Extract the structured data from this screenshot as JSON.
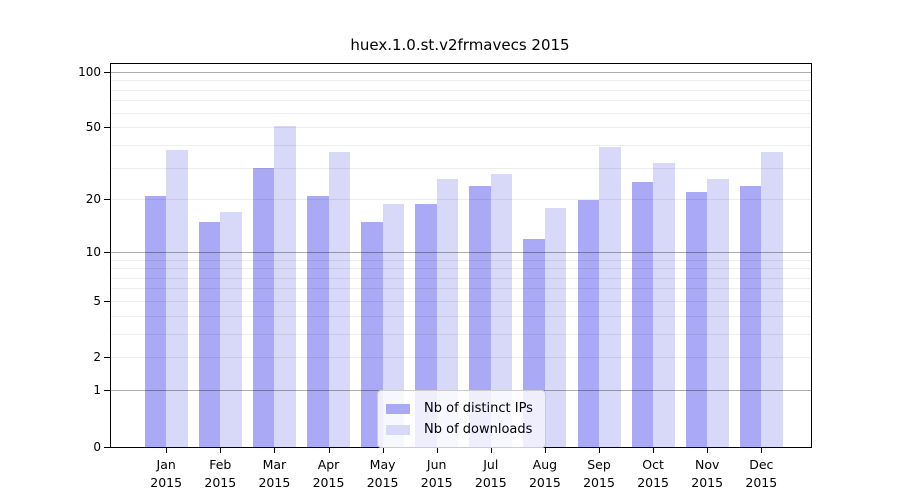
{
  "title": "huex.1.0.st.v2frmavecs 2015",
  "chart_data": {
    "type": "bar",
    "title": "huex.1.0.st.v2frmavecs 2015",
    "categories": [
      "Jan",
      "Feb",
      "Mar",
      "Apr",
      "May",
      "Jun",
      "Jul",
      "Aug",
      "Sep",
      "Oct",
      "Nov",
      "Dec"
    ],
    "year": "2015",
    "series": [
      {
        "name": "Nb of distinct IPs",
        "color": "#a9a9f5",
        "values": [
          21,
          15,
          30,
          21,
          15,
          19,
          24,
          12,
          20,
          25,
          22,
          24
        ]
      },
      {
        "name": "Nb of downloads",
        "color": "#d8d8f8",
        "values": [
          38,
          17,
          51,
          37,
          19,
          26,
          28,
          18,
          39,
          32,
          26,
          37
        ]
      }
    ],
    "xlabel": "",
    "ylabel": "",
    "y_ticks": [
      0,
      1,
      2,
      5,
      10,
      20,
      50,
      100
    ],
    "y_scale": "log10(value+1)",
    "ylim": [
      0,
      110
    ],
    "grid": "horizontal, minor log lines faint, decade lines darker",
    "legend_position": "lower center inside plot",
    "bar_layout": "grouped pairs per month"
  }
}
